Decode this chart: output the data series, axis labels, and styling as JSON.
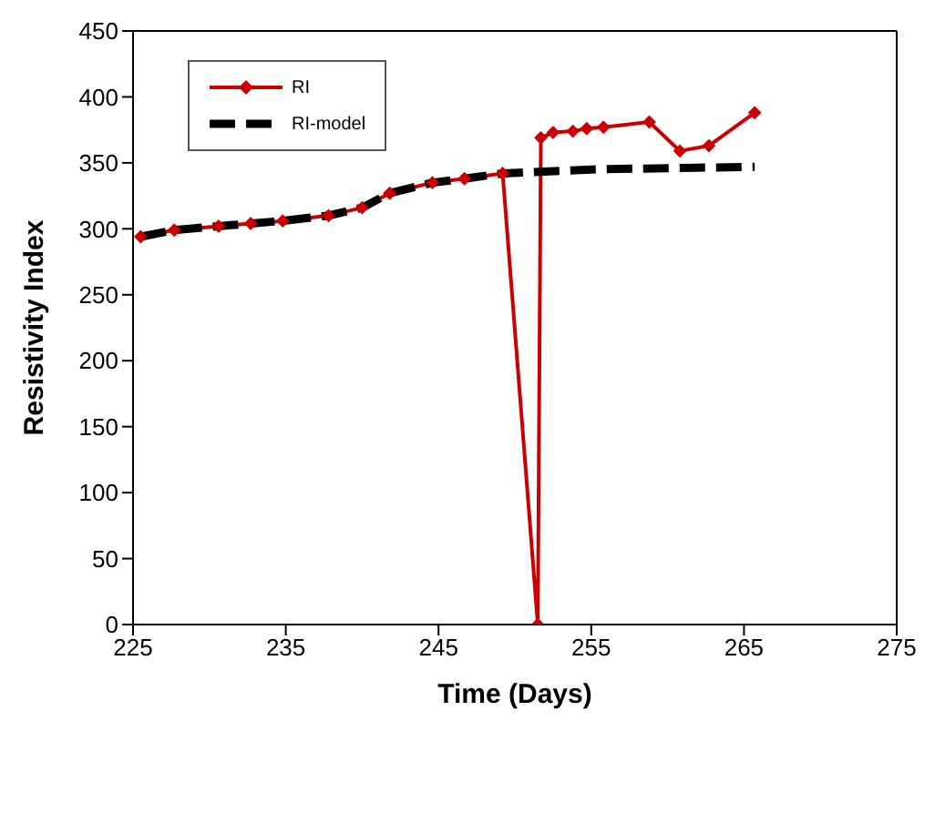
{
  "chart_data": {
    "type": "line",
    "xlabel": "Time (Days)",
    "ylabel": "Resistivity Index",
    "xlim": [
      225,
      275
    ],
    "xticks": [
      225,
      235,
      245,
      255,
      265,
      275
    ],
    "ylim": [
      0,
      450
    ],
    "yticks": [
      0,
      50,
      100,
      150,
      200,
      250,
      300,
      350,
      400,
      450
    ],
    "legend": "top left",
    "series": [
      {
        "name": "RI",
        "color": "#cc0000",
        "marker": "diamond",
        "line_style": "solid",
        "x": [
          225.5,
          227.7,
          230.6,
          232.7,
          234.8,
          237.8,
          240,
          241.8,
          244.6,
          246.7,
          249.2,
          251.5,
          251.7,
          252.5,
          253.8,
          254.7,
          255.8,
          258.8,
          260.8,
          262.7,
          265.7
        ],
        "values": [
          294,
          299,
          302,
          304,
          306,
          310,
          316,
          327,
          335,
          338,
          342,
          0,
          369,
          373,
          374,
          376,
          377,
          381,
          359,
          363,
          388
        ]
      },
      {
        "name": "RI-model",
        "color": "#000000",
        "marker": "none",
        "line_style": "dashed",
        "x": [
          225.5,
          227.7,
          230.6,
          232.7,
          234.8,
          237.8,
          240,
          241.8,
          244.6,
          246.7,
          249.2,
          255,
          260,
          265.7
        ],
        "values": [
          294,
          299,
          302,
          304,
          306,
          310,
          316,
          327,
          335,
          338,
          342,
          345,
          346,
          347
        ]
      }
    ]
  }
}
